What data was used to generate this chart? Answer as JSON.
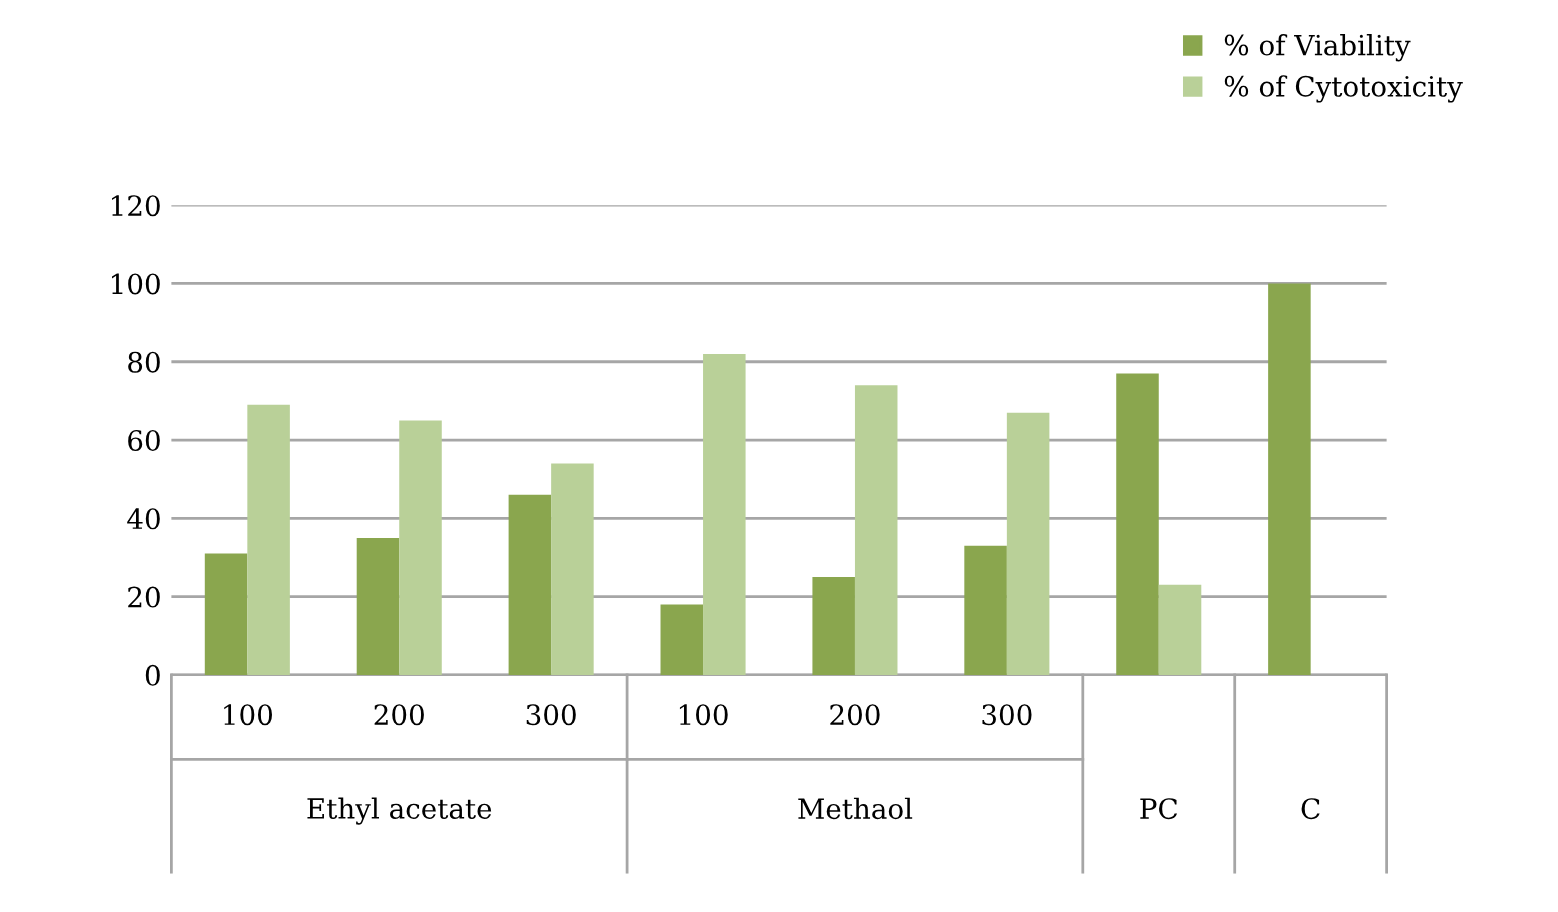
{
  "chart_data": {
    "type": "bar",
    "categories": [
      "100",
      "200",
      "300",
      "100",
      "200",
      "300",
      null,
      null
    ],
    "series": [
      {
        "name": "% of Viability",
        "color": "#8aa64e",
        "values": [
          31,
          35,
          46,
          18,
          25,
          33,
          77,
          100
        ]
      },
      {
        "name": "% of Cytotoxicity",
        "color": "#b9d098",
        "values": [
          69,
          65,
          54,
          82,
          74,
          67,
          23,
          null
        ]
      }
    ],
    "annotations": [
      "Ethyl acetate",
      "Methaol",
      "PC",
      "C"
    ],
    "ylim": [
      0,
      120
    ],
    "yticks": [
      0,
      20,
      40,
      60,
      80,
      100,
      120
    ],
    "grid": "y",
    "legend": "top right"
  }
}
